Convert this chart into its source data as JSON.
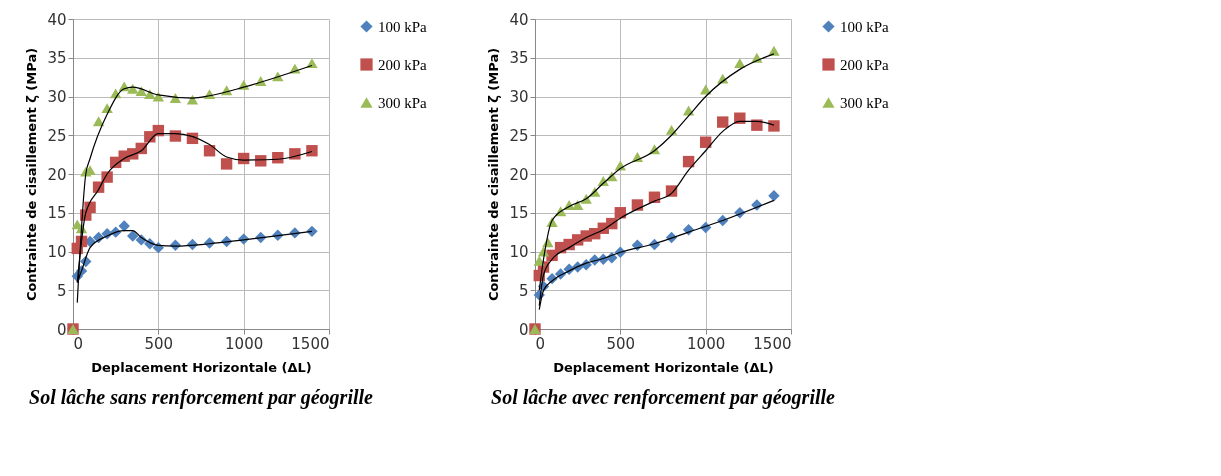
{
  "chart_data": [
    {
      "type": "scatter",
      "title": "Sol lâche sans renforcement par géogrille",
      "xlabel": "Deplacement Horizontale (ΔL)",
      "ylabel": "Contrainte de cisaillement ζ (MPa)",
      "xlim": [
        0,
        1500
      ],
      "xticks": [
        0,
        500,
        1000,
        1500
      ],
      "ylim": [
        0,
        40
      ],
      "yticks": [
        0,
        5,
        10,
        15,
        20,
        25,
        30,
        35,
        40
      ],
      "grid": true,
      "legend": "right",
      "series": [
        {
          "name": "100 kPa",
          "color": "#4f81bd",
          "marker": "diamond",
          "x": [
            0,
            25,
            50,
            75,
            100,
            150,
            200,
            250,
            300,
            350,
            400,
            450,
            500,
            600,
            700,
            800,
            900,
            1000,
            1100,
            1200,
            1300,
            1400
          ],
          "values": [
            0,
            6.8,
            7.5,
            8.7,
            11.3,
            11.8,
            12.3,
            12.5,
            13.3,
            12,
            11.5,
            11,
            10.5,
            10.8,
            10.9,
            11.1,
            11.3,
            11.6,
            11.8,
            12.1,
            12.4,
            12.6
          ]
        },
        {
          "name": "200 kPa",
          "color": "#c0504d",
          "marker": "square",
          "x": [
            0,
            25,
            50,
            75,
            100,
            150,
            200,
            250,
            300,
            350,
            400,
            450,
            500,
            600,
            700,
            800,
            900,
            1000,
            1100,
            1200,
            1300,
            1400
          ],
          "values": [
            0,
            10.4,
            11.3,
            14.7,
            15.7,
            18.3,
            19.6,
            21.5,
            22.3,
            22.6,
            23.3,
            24.8,
            25.6,
            24.9,
            24.6,
            23,
            21.3,
            22,
            21.7,
            22.1,
            22.6,
            23
          ]
        },
        {
          "name": "300 kPa",
          "color": "#9bbb59",
          "marker": "triangle",
          "x": [
            0,
            25,
            50,
            75,
            100,
            150,
            200,
            250,
            300,
            350,
            400,
            450,
            500,
            600,
            700,
            800,
            900,
            1000,
            1100,
            1200,
            1300,
            1400
          ],
          "values": [
            0,
            13.5,
            13,
            20.3,
            20.5,
            26.8,
            28.5,
            30.4,
            31.3,
            31,
            30.7,
            30.3,
            30,
            29.8,
            29.6,
            30.3,
            30.8,
            31.5,
            32,
            32.6,
            33.6,
            34.3
          ]
        },
        {
          "type": "line",
          "color": "#000000",
          "x": [
            25,
            50,
            100,
            200,
            300,
            350,
            400,
            500,
            600,
            800,
            1000,
            1400
          ],
          "values": [
            6,
            7.5,
            10.5,
            12,
            12.7,
            12.7,
            11.8,
            10.8,
            10.7,
            11,
            11.5,
            12.6
          ]
        },
        {
          "type": "line",
          "color": "#000000",
          "x": [
            25,
            75,
            150,
            200,
            300,
            400,
            500,
            600,
            800,
            900,
            1000,
            1200,
            1400
          ],
          "values": [
            6,
            15,
            18,
            20,
            22,
            23,
            25.2,
            25.2,
            23.8,
            22.2,
            21.8,
            21.9,
            22.9
          ]
        },
        {
          "type": "line",
          "color": "#000000",
          "x": [
            25,
            75,
            100,
            200,
            300,
            350,
            500,
            700,
            800,
            1000,
            1400
          ],
          "values": [
            3.4,
            20,
            22,
            27.7,
            31,
            31.2,
            30.2,
            29.8,
            30.1,
            31.2,
            34
          ]
        }
      ]
    },
    {
      "type": "scatter",
      "title": "Sol lâche avec renforcement par géogrille",
      "xlabel": "Deplacement Horizontale (ΔL)",
      "ylabel": "Contrainte de cisaillement ζ (MPa)",
      "xlim": [
        0,
        1500
      ],
      "xticks": [
        0,
        500,
        1000,
        1500
      ],
      "ylim": [
        0,
        40
      ],
      "yticks": [
        0,
        5,
        10,
        15,
        20,
        25,
        30,
        35,
        40
      ],
      "grid": true,
      "legend": "right",
      "series": [
        {
          "name": "100 kPa",
          "color": "#4f81bd",
          "marker": "diamond",
          "x": [
            0,
            25,
            50,
            100,
            150,
            200,
            250,
            300,
            350,
            400,
            450,
            500,
            600,
            700,
            800,
            900,
            1000,
            1100,
            1200,
            1300,
            1400
          ],
          "values": [
            0,
            4.4,
            5.5,
            6.5,
            7.1,
            7.7,
            8,
            8.3,
            8.9,
            9,
            9.2,
            9.9,
            10.8,
            10.9,
            11.8,
            12.8,
            13.1,
            14,
            15,
            16,
            17.2
          ]
        },
        {
          "name": "200 kPa",
          "color": "#c0504d",
          "marker": "square",
          "x": [
            0,
            25,
            50,
            100,
            150,
            200,
            250,
            300,
            350,
            400,
            450,
            500,
            600,
            700,
            800,
            900,
            1000,
            1100,
            1200,
            1300,
            1400
          ],
          "values": [
            0,
            6.9,
            8,
            9.5,
            10.5,
            10.9,
            11.5,
            12,
            12.3,
            13,
            13.6,
            15,
            16,
            17,
            17.8,
            21.6,
            24.1,
            26.7,
            27.2,
            26.3,
            26.2
          ]
        },
        {
          "name": "300 kPa",
          "color": "#9bbb59",
          "marker": "triangle",
          "x": [
            0,
            25,
            50,
            75,
            100,
            150,
            200,
            250,
            300,
            350,
            400,
            450,
            500,
            600,
            700,
            800,
            900,
            1000,
            1100,
            1200,
            1300,
            1400
          ],
          "values": [
            0,
            8.8,
            10,
            11.2,
            13.8,
            15.2,
            16,
            16,
            16.8,
            17.7,
            19.1,
            19.7,
            21.1,
            22.2,
            23.2,
            25.7,
            28.2,
            30.9,
            32.3,
            34.3,
            35,
            35.9
          ]
        },
        {
          "type": "line",
          "color": "#000000",
          "x": [
            25,
            50,
            100,
            200,
            300,
            400,
            500,
            700,
            900,
            1100,
            1400
          ],
          "values": [
            2.5,
            5,
            6.2,
            7.5,
            8.5,
            9.1,
            9.9,
            11,
            12.5,
            14,
            16.6
          ]
        },
        {
          "type": "line",
          "color": "#000000",
          "x": [
            25,
            50,
            100,
            200,
            300,
            400,
            500,
            700,
            800,
            900,
            1000,
            1100,
            1200,
            1300,
            1400
          ],
          "values": [
            3,
            7,
            9,
            10.5,
            11.8,
            12.8,
            14.3,
            16.5,
            17.5,
            20.5,
            23,
            25.5,
            26.8,
            26.8,
            26.3
          ]
        },
        {
          "type": "line",
          "color": "#000000",
          "x": [
            25,
            50,
            100,
            200,
            300,
            400,
            500,
            700,
            800,
            900,
            1000,
            1200,
            1400
          ],
          "values": [
            5,
            9,
            14,
            15.8,
            16.8,
            18.8,
            20.7,
            23,
            25,
            27.5,
            30,
            33.5,
            35.5
          ]
        }
      ]
    }
  ]
}
